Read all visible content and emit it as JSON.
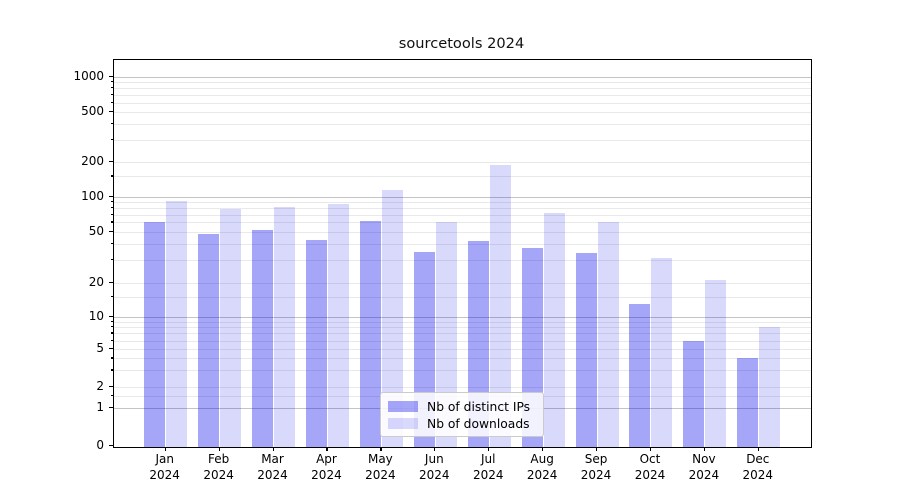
{
  "figure": {
    "title": "sourcetools 2024"
  },
  "chart_data": {
    "type": "bar",
    "title": "sourcetools 2024",
    "categories": [
      "Jan",
      "Feb",
      "Mar",
      "Apr",
      "May",
      "Jun",
      "Jul",
      "Aug",
      "Sep",
      "Oct",
      "Nov",
      "Dec"
    ],
    "x_year_label": "2024",
    "series": [
      {
        "name": "Nb of distinct IPs",
        "color": "rgba(0,0,238,0.35)",
        "values": [
          61,
          48,
          52,
          43,
          62,
          35,
          42,
          37,
          34,
          13,
          6,
          4
        ]
      },
      {
        "name": "Nb of downloads",
        "color": "rgba(0,0,238,0.15)",
        "values": [
          92,
          79,
          82,
          86,
          114,
          60,
          189,
          73,
          61,
          31,
          21,
          8
        ]
      }
    ],
    "xlabel": "",
    "ylabel": "",
    "y_ticks": [
      0,
      1,
      2,
      5,
      10,
      20,
      50,
      100,
      200,
      500,
      1000
    ],
    "y_axis_scale": "log-like with 0 baseline",
    "ylim": [
      0,
      1400
    ],
    "major_grid_values": [
      1,
      10,
      100,
      1000
    ],
    "light_grid_values": [
      1.5,
      2,
      3,
      4,
      5,
      6,
      7,
      8,
      9,
      15,
      20,
      30,
      40,
      50,
      60,
      70,
      80,
      90,
      150,
      200,
      300,
      400,
      500,
      600,
      700,
      800,
      900
    ],
    "grid": true,
    "legend_position": "lower center"
  },
  "colors": {
    "background": "#ffffff",
    "axis": "#000000",
    "major_grid": "#c4c4c4",
    "minor_grid": "#e9e9e9",
    "bar_dark": "rgba(0,0,238,0.35)",
    "bar_light": "rgba(0,0,238,0.15)"
  }
}
